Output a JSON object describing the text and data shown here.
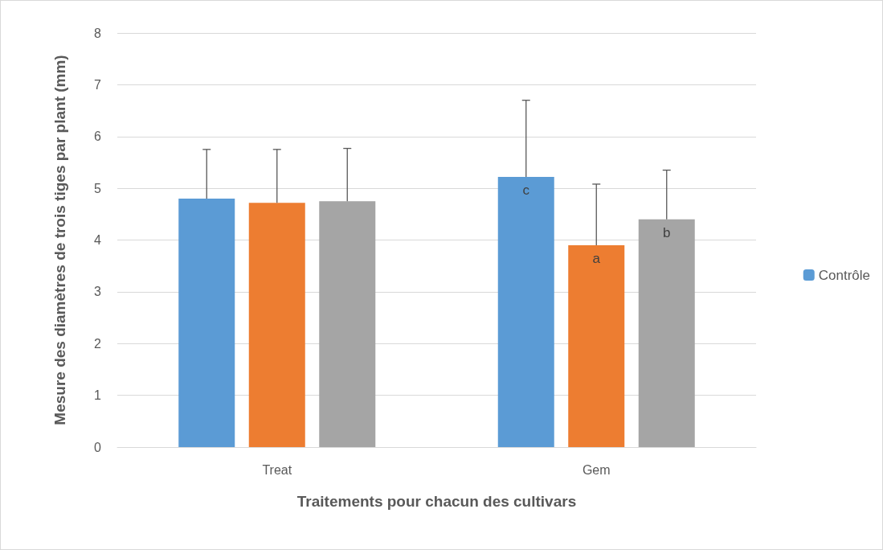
{
  "chart_data": {
    "type": "bar",
    "xlabel": "Traitements pour chacun des cultivars",
    "ylabel": "Mesure des diamètres de trois tiges par plant (mm)",
    "categories": [
      "Treat",
      "Gem"
    ],
    "series": [
      {
        "name": "Contrôle",
        "color": "#5b9bd5",
        "values": [
          4.8,
          5.22
        ],
        "errors": [
          [
            4.8,
            5.75
          ],
          [
            5.22,
            6.7
          ]
        ],
        "value_labels": [
          null,
          "c"
        ]
      },
      {
        "color": "#ed7d31",
        "values": [
          4.72,
          3.9
        ],
        "errors": [
          [
            4.72,
            5.75
          ],
          [
            3.9,
            5.08
          ]
        ],
        "value_labels": [
          null,
          "a"
        ]
      },
      {
        "color": "#a5a5a5",
        "values": [
          4.75,
          4.4
        ],
        "errors": [
          [
            4.75,
            5.77
          ],
          [
            4.4,
            5.35
          ]
        ],
        "value_labels": [
          null,
          "b"
        ]
      }
    ],
    "ylim": [
      0,
      8
    ],
    "yticks": [
      0,
      1,
      2,
      3,
      4,
      5,
      6,
      7,
      8
    ],
    "grid": "y",
    "legend": "right"
  }
}
